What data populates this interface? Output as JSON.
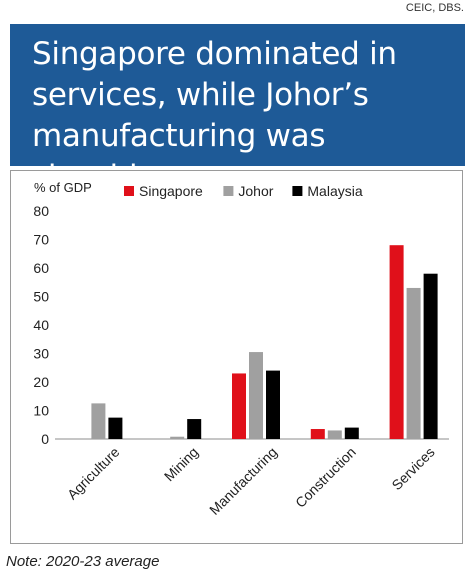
{
  "source": "CEIC, DBS.",
  "headline": "Singapore dominated in services, while Johor’s manufacturing was sizeable",
  "note": "Note: 2020-23 average",
  "colors": {
    "banner": "#1e5a97",
    "singapore": "#e0101a",
    "johor": "#a0a0a0",
    "malaysia": "#000000"
  },
  "chart_data": {
    "type": "bar",
    "title": "",
    "ylabel": "% of GDP",
    "xlabel": "",
    "ylim": [
      0,
      80
    ],
    "yticks": [
      0,
      10,
      20,
      30,
      40,
      50,
      60,
      70,
      80
    ],
    "grid": false,
    "legend": "top",
    "categories": [
      "Agriculture",
      "Mining",
      "Manufacturing",
      "Construction",
      "Services"
    ],
    "series": [
      {
        "name": "Singapore",
        "color": "#e0101a",
        "values": [
          0,
          0,
          23,
          3.5,
          68
        ]
      },
      {
        "name": "Johor",
        "color": "#a0a0a0",
        "values": [
          12.5,
          0.8,
          30.5,
          3,
          53
        ]
      },
      {
        "name": "Malaysia",
        "color": "#000000",
        "values": [
          7.5,
          7,
          24,
          4,
          58
        ]
      }
    ]
  }
}
